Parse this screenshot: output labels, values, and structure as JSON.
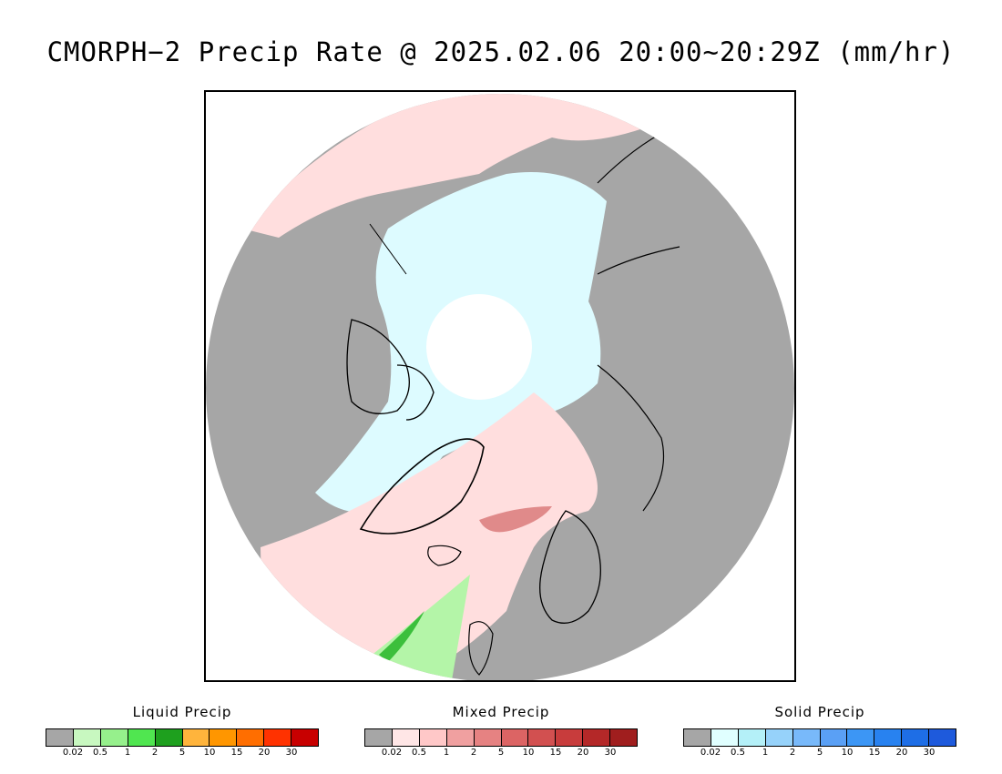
{
  "title": "CMORPH−2 Precip Rate @ 2025.02.06 20:00~20:29Z (mm/hr)",
  "map": {
    "projection": "north-polar-stereographic",
    "background_color": "#a6a6a6",
    "coastline_color": "#000000"
  },
  "legends": [
    {
      "title": "Liquid Precip",
      "colors": [
        "#a6a6a6",
        "#c8f8c0",
        "#96f08c",
        "#50e650",
        "#1ea01e",
        "#ffb43c",
        "#ff9600",
        "#ff6e00",
        "#ff3200",
        "#c80000"
      ],
      "ticks": [
        "0.02",
        "0.5",
        "1",
        "2",
        "5",
        "10",
        "15",
        "20",
        "30"
      ]
    },
    {
      "title": "Mixed Precip",
      "colors": [
        "#a6a6a6",
        "#ffe6e6",
        "#ffc8c8",
        "#f0a0a0",
        "#e68282",
        "#dc6464",
        "#d25050",
        "#c83c3c",
        "#b42828",
        "#a01e1e"
      ],
      "ticks": [
        "0.02",
        "0.5",
        "1",
        "2",
        "5",
        "10",
        "15",
        "20",
        "30"
      ]
    },
    {
      "title": "Solid Precip",
      "colors": [
        "#a6a6a6",
        "#e0ffff",
        "#b4f0f8",
        "#96d2fa",
        "#78b9fa",
        "#5aa0f5",
        "#3c96f5",
        "#2882f0",
        "#1e6ee6",
        "#1e5adc"
      ],
      "ticks": [
        "0.02",
        "0.5",
        "1",
        "2",
        "5",
        "10",
        "15",
        "20",
        "30"
      ]
    }
  ]
}
